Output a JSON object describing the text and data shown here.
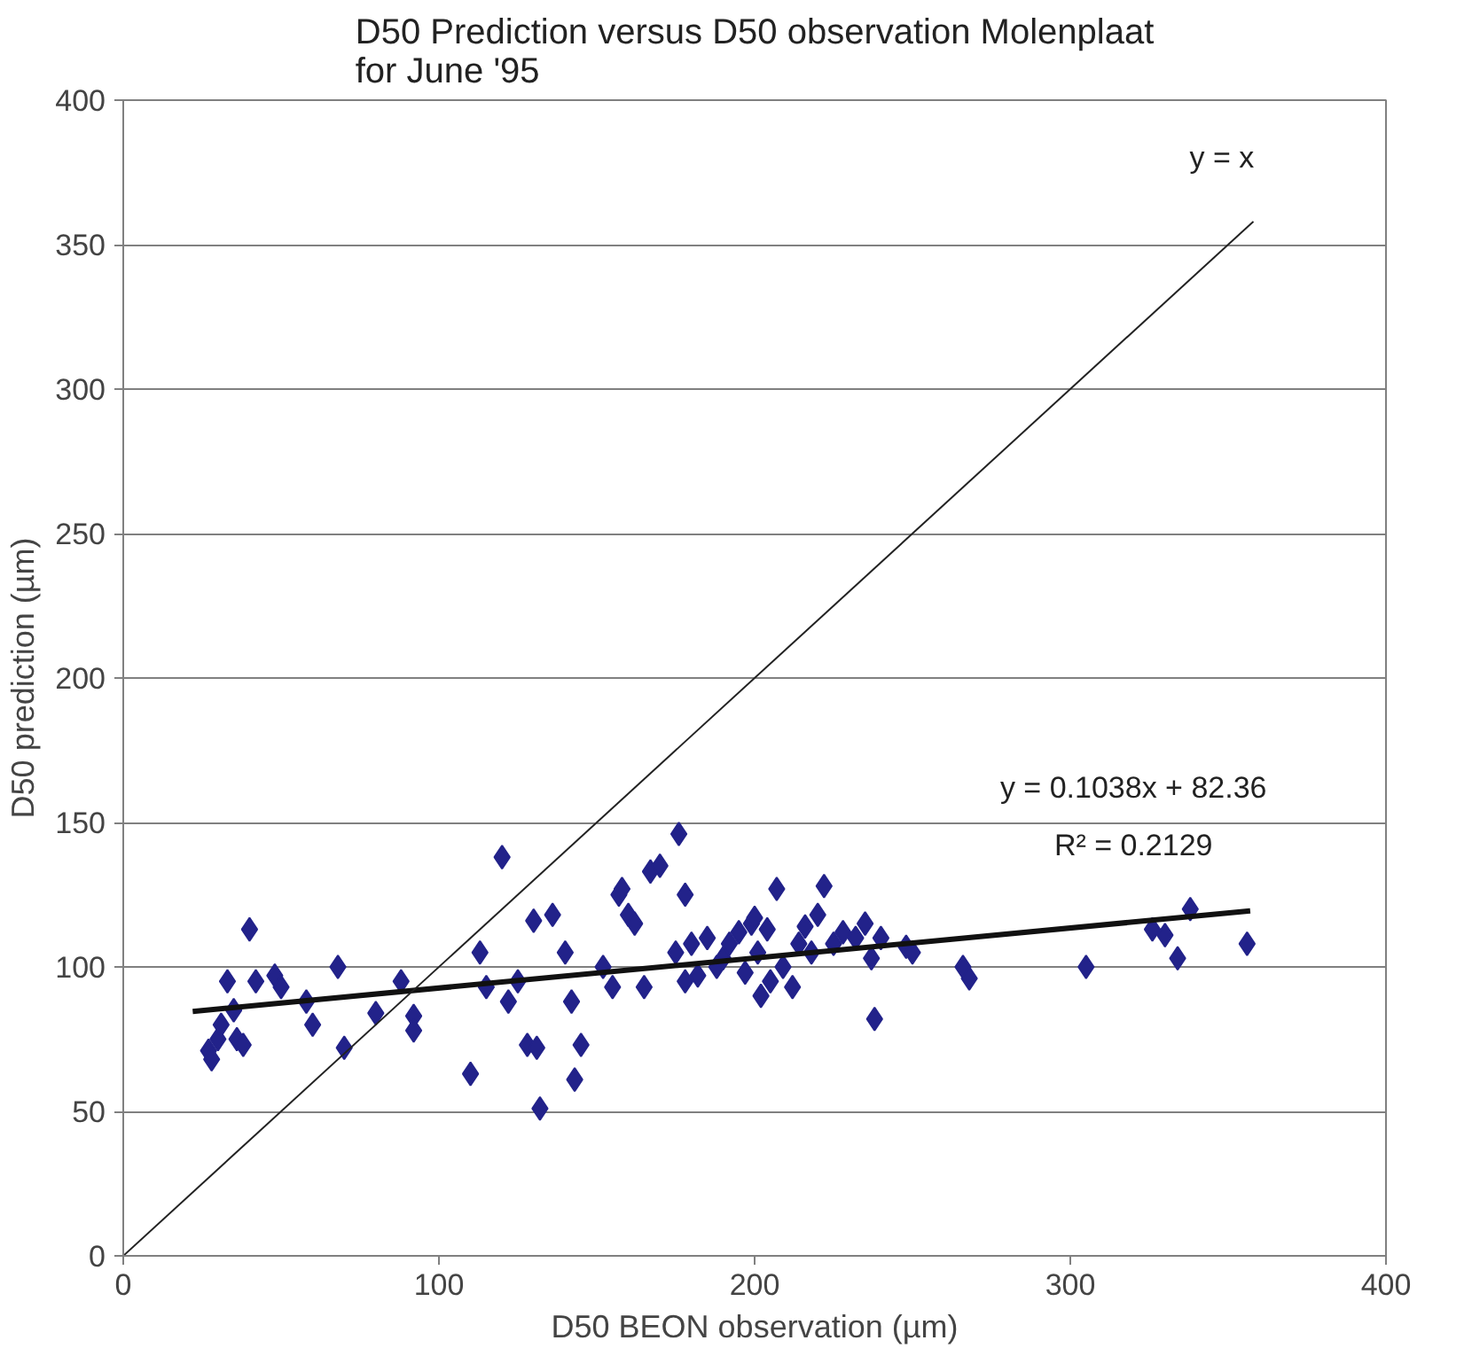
{
  "chart_data": {
    "type": "scatter",
    "title": "D50 Prediction versus D50 observation Molenplaat\nfor June '95",
    "xlabel": "D50 BEON observation (µm)",
    "ylabel": "D50 prediction (µm)",
    "xlim": [
      0,
      400
    ],
    "ylim": [
      0,
      400
    ],
    "xticks": [
      0,
      100,
      200,
      300,
      400
    ],
    "yticks": [
      0,
      50,
      100,
      150,
      200,
      250,
      300,
      350,
      400
    ],
    "grid": "y",
    "series": [
      {
        "color": "#22228a",
        "marker": "diamond",
        "x": [
          27,
          28,
          30,
          31,
          33,
          35,
          36,
          38,
          40,
          42,
          48,
          50,
          58,
          60,
          68,
          70,
          80,
          88,
          92,
          92,
          110,
          113,
          115,
          120,
          122,
          125,
          128,
          130,
          131,
          132,
          136,
          140,
          142,
          143,
          145,
          152,
          155,
          157,
          158,
          160,
          162,
          165,
          167,
          170,
          175,
          176,
          178,
          178,
          180,
          182,
          185,
          188,
          190,
          192,
          195,
          197,
          199,
          200,
          201,
          202,
          204,
          205,
          207,
          209,
          212,
          214,
          216,
          218,
          220,
          222,
          225,
          228,
          232,
          235,
          237,
          238,
          240,
          248,
          250,
          266,
          268,
          305,
          326,
          330,
          334,
          338,
          356
        ],
        "values": [
          71,
          68,
          75,
          80,
          95,
          85,
          75,
          73,
          113,
          95,
          97,
          93,
          88,
          80,
          100,
          72,
          84,
          95,
          83,
          78,
          63,
          105,
          93,
          138,
          88,
          95,
          73,
          116,
          72,
          51,
          118,
          105,
          88,
          61,
          73,
          100,
          93,
          125,
          127,
          118,
          115,
          93,
          133,
          135,
          105,
          146,
          125,
          95,
          108,
          97,
          110,
          100,
          103,
          108,
          112,
          98,
          115,
          117,
          105,
          90,
          113,
          95,
          127,
          100,
          93,
          108,
          114,
          105,
          118,
          128,
          108,
          112,
          110,
          115,
          103,
          82,
          110,
          107,
          105,
          100,
          96,
          100,
          113,
          111,
          103,
          120,
          108
        ]
      },
      {
        "type": "line",
        "color": "#111111",
        "x": [
          22,
          357
        ],
        "values": [
          84.6,
          119.4
        ]
      },
      {
        "type": "line",
        "color": "#222222",
        "x": [
          0,
          358
        ],
        "values": [
          0,
          358
        ]
      }
    ],
    "annotations": [
      "y = x",
      "y = 0.1038x + 82.36",
      "R² = 0.2129"
    ]
  }
}
